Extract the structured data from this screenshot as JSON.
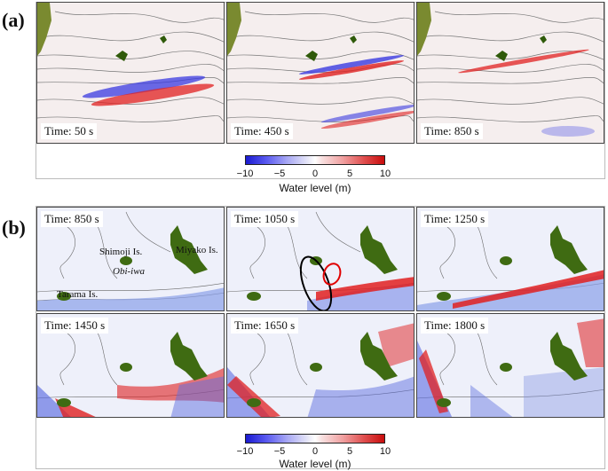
{
  "figure": {
    "panel_a": {
      "label": "(a)",
      "frames": [
        {
          "time": "Time: 50 s"
        },
        {
          "time": "Time: 450 s"
        },
        {
          "time": "Time: 850 s"
        }
      ],
      "colorbar": {
        "ticks": [
          "−10",
          "−5",
          "0",
          "5",
          "10"
        ],
        "title": "Water level (m)"
      }
    },
    "panel_b": {
      "label": "(b)",
      "frames": [
        {
          "time": "Time: 850 s"
        },
        {
          "time": "Time: 1050 s"
        },
        {
          "time": "Time: 1250 s"
        },
        {
          "time": "Time: 1450 s"
        },
        {
          "time": "Time: 1650 s"
        },
        {
          "time": "Time: 1800 s"
        }
      ],
      "labels": {
        "shimoji": "Shimoji Is.",
        "obi_iwa": "Obi-iwa",
        "miyako": "Miyako Is.",
        "tarama": "Tarama Is."
      },
      "colorbar": {
        "ticks": [
          "−10",
          "−5",
          "0",
          "5",
          "10"
        ],
        "title": "Water level (m)"
      }
    },
    "colors": {
      "positive": "#d81818",
      "negative": "#2a2ad8",
      "land": "#3f6b12",
      "contour": "#555555"
    }
  }
}
